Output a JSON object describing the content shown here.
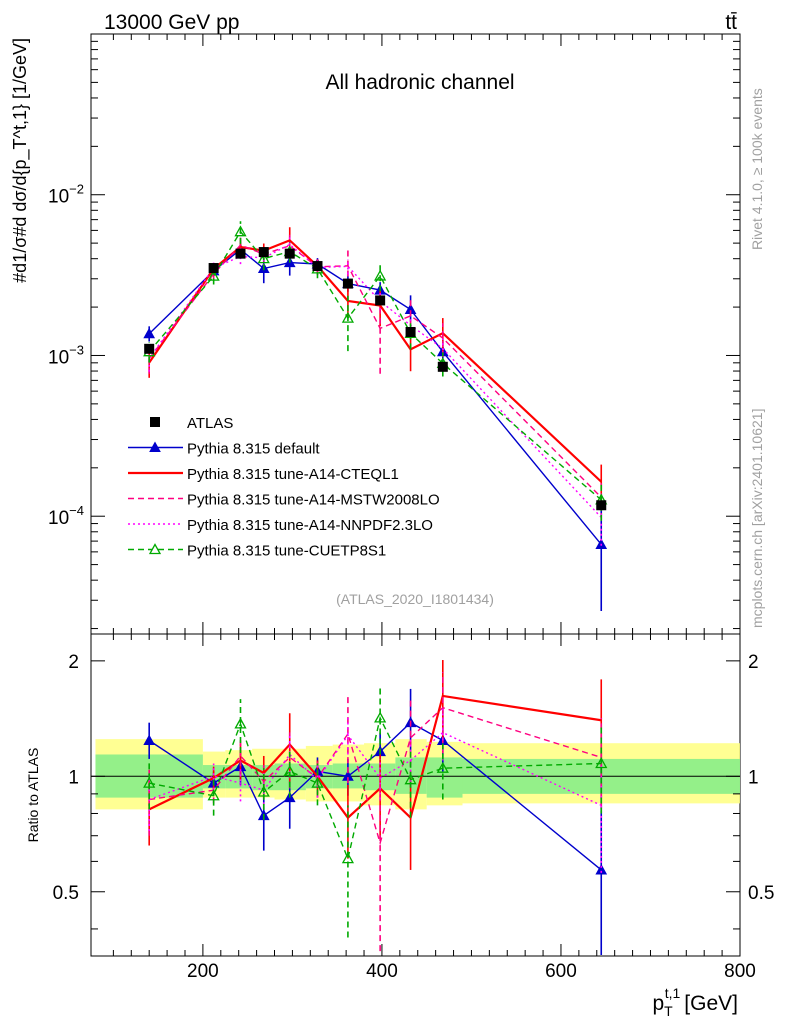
{
  "header": {
    "energy_label": "13000 GeV pp",
    "process_label": "tt̄",
    "channel_label": "All hadronic channel",
    "analysis_id": "(ATLAS_2020_I1801434)",
    "side_rivet": "Rivet 4.1.0, ≥ 100k events",
    "side_mcplots": "mcplots.cern.ch [arXiv:2401.10621]"
  },
  "axes": {
    "y_label_main": "#d1/σ#d dσ/d{p_T^t,1} [1/GeV]",
    "y_label_ratio": "Ratio to ATLAS",
    "x_label": "p_T^t,1 [GeV]",
    "x_label_base": "p",
    "x_label_sub": "T",
    "x_label_sup": "t,1",
    "x_label_unit": "[GeV]",
    "x_ticks": [
      200,
      400,
      600,
      800
    ],
    "x_tick_labels": [
      "200",
      "400",
      "600",
      "800"
    ],
    "y_main_ticks": [
      0.0001,
      0.001,
      0.01
    ],
    "y_main_base": [
      "10",
      "10",
      "10"
    ],
    "y_main_exp": [
      "−4",
      "−3",
      "−2"
    ],
    "ratio_ticks": [
      0.5,
      1,
      2
    ],
    "ratio_tick_labels": [
      "0.5",
      "1",
      "2"
    ]
  },
  "chart_data": {
    "type": "line",
    "x_range": [
      75,
      800
    ],
    "y_main_range": [
      1.85e-05,
      0.1
    ],
    "y_main_scale": "log",
    "y_ratio_range": [
      0.34,
      2.35
    ],
    "y_ratio_scale": "log",
    "x": [
      140,
      212,
      242,
      268,
      297,
      328,
      362,
      398,
      432,
      468,
      645
    ],
    "bin_edges": [
      80,
      200,
      225,
      255,
      280,
      315,
      345,
      380,
      415,
      450,
      490,
      800
    ],
    "data": {
      "name": "ATLAS",
      "values": [
        0.0011,
        0.0035,
        0.0043,
        0.0044,
        0.0043,
        0.0036,
        0.0028,
        0.0022,
        0.0014,
        0.00085,
        0.000117
      ],
      "band_stat": [
        [
          0.88,
          1.14
        ],
        [
          0.93,
          1.07
        ],
        [
          0.93,
          1.07
        ],
        [
          0.92,
          1.07
        ],
        [
          0.92,
          1.08
        ],
        [
          0.93,
          1.07
        ],
        [
          0.93,
          1.08
        ],
        [
          0.92,
          1.08
        ],
        [
          0.9,
          1.12
        ],
        [
          0.88,
          1.12
        ],
        [
          0.9,
          1.11
        ]
      ],
      "band_tot": [
        [
          0.82,
          1.25
        ],
        [
          0.88,
          1.16
        ],
        [
          0.88,
          1.17
        ],
        [
          0.88,
          1.18
        ],
        [
          0.87,
          1.18
        ],
        [
          0.86,
          1.2
        ],
        [
          0.86,
          1.21
        ],
        [
          0.84,
          1.22
        ],
        [
          0.82,
          1.25
        ],
        [
          0.84,
          1.23
        ],
        [
          0.85,
          1.22
        ]
      ]
    },
    "series": [
      {
        "name": "Pythia 8.315 default",
        "color": "#0000cc",
        "style": "solid",
        "marker": "triangle-filled",
        "ratio": [
          1.24,
          0.96,
          1.06,
          0.79,
          0.88,
          1.03,
          1.0,
          1.16,
          1.38,
          1.24,
          0.57
        ],
        "err_lo": [
          0.13,
          0.07,
          0.11,
          0.15,
          0.15,
          0.09,
          0.11,
          0.12,
          0.22,
          0.21,
          0.35
        ],
        "err_hi": [
          0.14,
          0.07,
          0.11,
          0.15,
          0.15,
          0.09,
          0.11,
          0.14,
          0.31,
          0.26,
          0.6
        ]
      },
      {
        "name": "Pythia 8.315 tune-A14-CTEQL1",
        "color": "#ff0000",
        "style": "solid",
        "marker": "none",
        "ratio": [
          0.82,
          0.99,
          1.1,
          1.02,
          1.21,
          1.0,
          0.78,
          0.93,
          0.78,
          1.62,
          1.4
        ],
        "err_lo": [
          0.16,
          0.07,
          0.12,
          0.11,
          0.25,
          0.1,
          0.17,
          0.24,
          0.21,
          0.39,
          0.38
        ],
        "err_hi": [
          0.16,
          0.07,
          0.12,
          0.11,
          0.25,
          0.1,
          0.17,
          0.24,
          0.21,
          0.39,
          0.39
        ]
      },
      {
        "name": "Pythia 8.315 tune-A14-MSTW2008LO",
        "color": "#ff0080",
        "style": "dashed",
        "marker": "none",
        "ratio": [
          0.87,
          0.92,
          1.13,
          0.97,
          1.12,
          0.99,
          1.29,
          0.67,
          1.26,
          1.51,
          1.12
        ],
        "err_lo": [
          0.17,
          0.07,
          0.13,
          0.1,
          0.19,
          0.11,
          0.33,
          0.32,
          0.32,
          0.36,
          0.3
        ],
        "err_hi": [
          0.17,
          0.07,
          0.13,
          0.1,
          0.19,
          0.11,
          0.33,
          0.32,
          0.32,
          0.36,
          0.3
        ]
      },
      {
        "name": "Pythia 8.315 tune-A14-NNPDF2.3LO",
        "color": "#ff00ff",
        "style": "dotted",
        "marker": "none",
        "ratio": [
          0.87,
          1.0,
          0.96,
          0.92,
          1.14,
          0.98,
          1.28,
          0.99,
          1.1,
          1.3,
          0.84
        ],
        "err_lo": [
          0.15,
          0.08,
          0.1,
          0.1,
          0.15,
          0.1,
          0.14,
          0.12,
          0.16,
          0.2,
          0.28
        ],
        "err_hi": [
          0.15,
          0.08,
          0.1,
          0.1,
          0.15,
          0.1,
          0.14,
          0.12,
          0.16,
          0.2,
          0.28
        ]
      },
      {
        "name": "Pythia 8.315 tune-CUETP8S1",
        "color": "#00aa00",
        "style": "dashed",
        "marker": "triangle-open",
        "ratio": [
          0.96,
          0.89,
          1.37,
          0.91,
          1.03,
          0.96,
          0.61,
          1.42,
          0.98,
          1.05,
          1.08
        ],
        "err_lo": [
          0.14,
          0.1,
          0.22,
          0.14,
          0.15,
          0.12,
          0.23,
          0.28,
          0.2,
          0.18,
          0.28
        ],
        "err_hi": [
          0.14,
          0.1,
          0.22,
          0.14,
          0.15,
          0.12,
          0.23,
          0.28,
          0.2,
          0.18,
          0.28
        ]
      }
    ]
  }
}
